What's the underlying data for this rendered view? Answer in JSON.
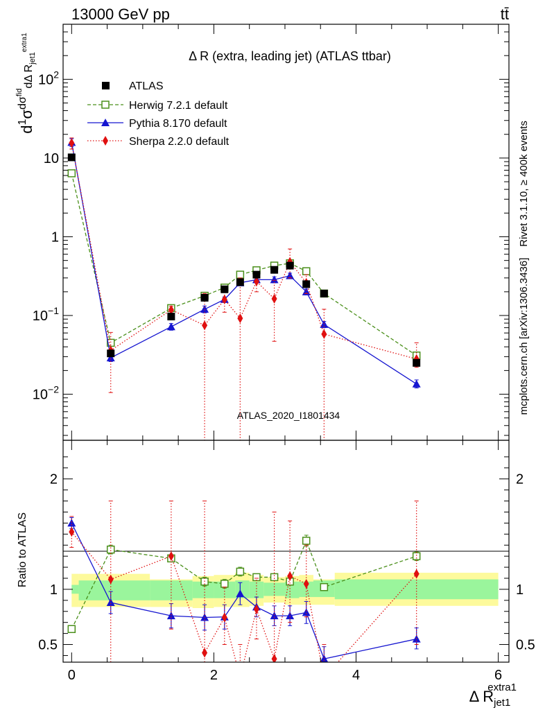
{
  "header": {
    "energy_label": "13000 GeV pp",
    "process_label": "tt̄"
  },
  "chart_data": [
    {
      "type": "line",
      "panel": "main",
      "title": "Δ R (extra, leading jet) (ATLAS ttbar)",
      "ylabel_parts": {
        "d": "d",
        "one": "1",
        "sigma": "σ",
        "num": "dσ",
        "num_sup": "fid",
        "den": "dΔ R",
        "den_sub": "jet1",
        "den_sup": "extra1"
      },
      "xlabel_parts": {
        "base": "Δ R",
        "sub": "jet1",
        "sup": "extra1"
      },
      "yscale": "log",
      "ylim": [
        0.0026,
        500
      ],
      "xlim": [
        -0.12,
        6.15
      ],
      "y_ticks": [
        {
          "v": 0.01,
          "base": "10",
          "exp": "−2"
        },
        {
          "v": 0.1,
          "base": "10",
          "exp": "−1"
        },
        {
          "v": 1,
          "base": "1",
          "exp": ""
        },
        {
          "v": 10,
          "base": "10",
          "exp": ""
        },
        {
          "v": 100,
          "base": "10",
          "exp": "2"
        }
      ],
      "x_ticks": [
        "0",
        "2",
        "4",
        "6"
      ],
      "watermark": "ATLAS_2020_I1801434",
      "side_label": "Rivet 3.1.10, ≥ 400k events",
      "side_label2": "mcplots.cern.ch [arXiv:1306.3436]",
      "legend_position": "top-left",
      "series": [
        {
          "name": "ATLAS",
          "style": "data",
          "color": "#000000",
          "marker": "square-filled",
          "x": [
            0.0,
            0.55,
            1.4,
            1.87,
            2.15,
            2.37,
            2.6,
            2.85,
            3.07,
            3.3,
            3.55,
            4.85
          ],
          "y": [
            10.2,
            0.033,
            0.097,
            0.168,
            0.215,
            0.265,
            0.33,
            0.38,
            0.43,
            0.25,
            0.19,
            0.025
          ]
        },
        {
          "name": "Herwig 7.2.1 default",
          "style": "dashed",
          "color": "#4a8f1a",
          "marker": "square-open",
          "x": [
            0.0,
            0.55,
            1.4,
            1.87,
            2.15,
            2.37,
            2.6,
            2.85,
            3.07,
            3.3,
            3.55,
            4.85
          ],
          "y": [
            6.4,
            0.045,
            0.124,
            0.178,
            0.226,
            0.33,
            0.375,
            0.43,
            0.46,
            0.365,
            0.19,
            0.031
          ]
        },
        {
          "name": "Pythia 8.170 default",
          "style": "solid",
          "color": "#1515d0",
          "marker": "triangle-filled",
          "x": [
            0.0,
            0.55,
            1.4,
            1.87,
            2.15,
            2.37,
            2.6,
            2.85,
            3.07,
            3.3,
            3.55,
            4.85
          ],
          "y": [
            15.8,
            0.029,
            0.072,
            0.12,
            0.16,
            0.26,
            0.285,
            0.285,
            0.32,
            0.2,
            0.077,
            0.0135
          ],
          "err_lo": [
            14.0,
            0.026,
            0.065,
            0.108,
            0.148,
            0.24,
            0.265,
            0.26,
            0.295,
            0.183,
            0.07,
            0.012
          ],
          "err_hi": [
            17.6,
            0.032,
            0.079,
            0.132,
            0.172,
            0.28,
            0.305,
            0.31,
            0.345,
            0.217,
            0.084,
            0.0152
          ]
        },
        {
          "name": "Sherpa 2.2.0 default",
          "style": "dotted",
          "color": "#e01010",
          "marker": "diamond-filled",
          "x": [
            0.0,
            0.55,
            1.4,
            1.87,
            2.15,
            2.37,
            2.6,
            2.85,
            3.07,
            3.3,
            3.55,
            4.85
          ],
          "y": [
            15.5,
            0.036,
            0.118,
            0.075,
            0.16,
            0.092,
            0.27,
            0.163,
            0.48,
            0.26,
            0.058,
            0.028
          ],
          "err_lo": [
            13.0,
            0.0105,
            0.105,
            0.0001,
            0.11,
            0.0001,
            0.2,
            0.047,
            0.3,
            0.19,
            0.0001,
            0.022
          ],
          "err_hi": [
            18.0,
            0.061,
            0.131,
            0.19,
            0.21,
            0.3,
            0.34,
            0.28,
            0.7,
            0.33,
            0.12,
            0.045
          ]
        }
      ]
    },
    {
      "type": "line",
      "panel": "ratio",
      "ylabel": "Ratio to ATLAS",
      "ylim": [
        0.34,
        2.35
      ],
      "y_ticks": [
        "0.5",
        "1",
        "2"
      ],
      "y_tick_values": [
        0.5,
        1,
        2
      ],
      "x_ticks": [
        "0",
        "2",
        "4",
        "6"
      ],
      "bands": {
        "x_edges": [
          0.0,
          0.1,
          1.1,
          1.7,
          2.0,
          2.3,
          2.5,
          2.7,
          3.0,
          3.2,
          3.4,
          3.7,
          6.0
        ],
        "inner_lo": [
          0.96,
          0.9,
          0.9,
          0.92,
          0.92,
          0.92,
          0.92,
          0.94,
          0.92,
          0.93,
          0.93,
          0.91
        ],
        "inner_hi": [
          1.04,
          1.08,
          1.08,
          1.07,
          1.07,
          1.08,
          1.07,
          1.06,
          1.07,
          1.07,
          1.08,
          1.09
        ],
        "outer_lo": [
          0.84,
          0.84,
          0.84,
          0.83,
          0.84,
          0.84,
          0.85,
          0.88,
          0.86,
          0.86,
          0.86,
          0.85
        ],
        "outer_hi": [
          1.14,
          1.14,
          1.09,
          1.12,
          1.13,
          1.15,
          1.13,
          1.11,
          1.12,
          1.13,
          1.09,
          1.15
        ]
      },
      "series": [
        {
          "name": "Herwig 7.2.1 default",
          "style": "dashed",
          "color": "#4a8f1a",
          "marker": "square-open",
          "x": [
            0.0,
            0.55,
            1.4,
            1.87,
            2.15,
            2.37,
            2.6,
            2.85,
            3.07,
            3.3,
            3.55,
            4.85
          ],
          "y": [
            0.64,
            1.36,
            1.28,
            1.07,
            1.05,
            1.16,
            1.11,
            1.11,
            1.07,
            1.44,
            1.02,
            1.3
          ],
          "err_lo": [
            0.64,
            1.32,
            1.25,
            1.03,
            1.01,
            1.12,
            1.08,
            1.08,
            1.04,
            1.39,
            0.99,
            1.26
          ],
          "err_hi": [
            0.64,
            1.4,
            1.31,
            1.11,
            1.09,
            1.2,
            1.14,
            1.14,
            1.1,
            1.49,
            1.05,
            1.34
          ]
        },
        {
          "name": "Pythia 8.170 default",
          "style": "solid",
          "color": "#1515d0",
          "marker": "triangle-filled",
          "x": [
            0.0,
            0.55,
            1.4,
            1.87,
            2.15,
            2.37,
            2.6,
            2.85,
            3.07,
            3.3,
            3.55,
            4.85
          ],
          "y": [
            1.6,
            0.88,
            0.76,
            0.745,
            0.75,
            0.96,
            0.84,
            0.76,
            0.76,
            0.79,
            0.37,
            0.55
          ],
          "err_lo": [
            1.55,
            0.78,
            0.65,
            0.63,
            0.64,
            0.86,
            0.75,
            0.67,
            0.67,
            0.69,
            0.34,
            0.46
          ],
          "err_hi": [
            1.65,
            0.98,
            0.87,
            0.86,
            0.86,
            1.06,
            0.93,
            0.85,
            0.85,
            0.89,
            0.48,
            0.65
          ]
        },
        {
          "name": "Sherpa 2.2.0 default",
          "style": "dotted",
          "color": "#e01010",
          "marker": "diamond-filled",
          "x": [
            0.0,
            0.55,
            1.4,
            1.87,
            2.15,
            2.37,
            2.6,
            2.85,
            3.07,
            3.3,
            3.55,
            4.85
          ],
          "y": [
            1.52,
            1.09,
            1.3,
            0.425,
            0.745,
            0.2,
            0.82,
            0.37,
            1.12,
            1.05,
            0.2,
            1.14
          ],
          "err_lo": [
            1.38,
            0.34,
            0.64,
            0.34,
            0.5,
            0.2,
            0.55,
            0.34,
            0.7,
            0.75,
            0.2,
            0.5
          ],
          "err_hi": [
            1.66,
            1.8,
            1.8,
            1.8,
            1.02,
            0.5,
            1.1,
            1.7,
            1.62,
            1.4,
            0.5,
            1.8
          ]
        }
      ]
    }
  ]
}
